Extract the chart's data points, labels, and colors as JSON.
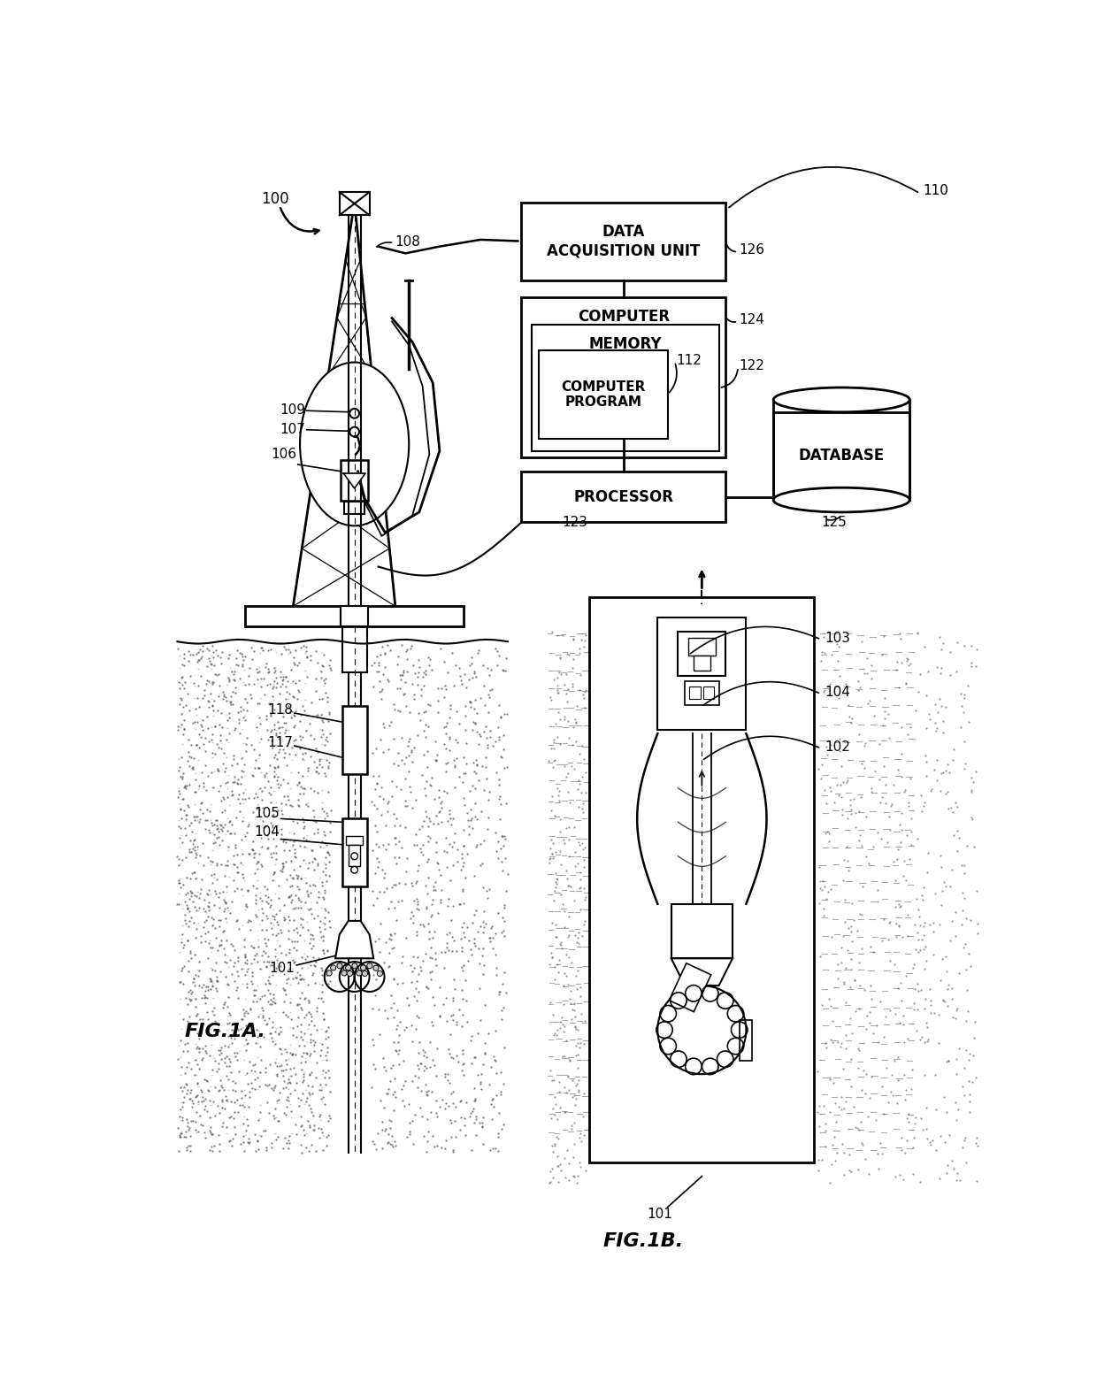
{
  "bg_color": "#ffffff",
  "lc": "#000000",
  "labels": {
    "100": "100",
    "101": "101",
    "102": "102",
    "103": "103",
    "104": "104",
    "105": "105",
    "106": "106",
    "107": "107",
    "108": "108",
    "109": "109",
    "110": "110",
    "112": "112",
    "117": "117",
    "118": "118",
    "122": "122",
    "123": "123",
    "124": "124",
    "125": "125",
    "126": "126"
  },
  "box_data_acq": "DATA\nACQUISITION UNIT",
  "box_computer": "COMPUTER",
  "box_memory": "MEMORY",
  "box_comp_prog": "COMPUTER\nPROGRAM",
  "box_processor": "PROCESSOR",
  "box_database": "DATABASE",
  "fig1a_label": "FIG.1A.",
  "fig1b_label": "FIG.1B."
}
